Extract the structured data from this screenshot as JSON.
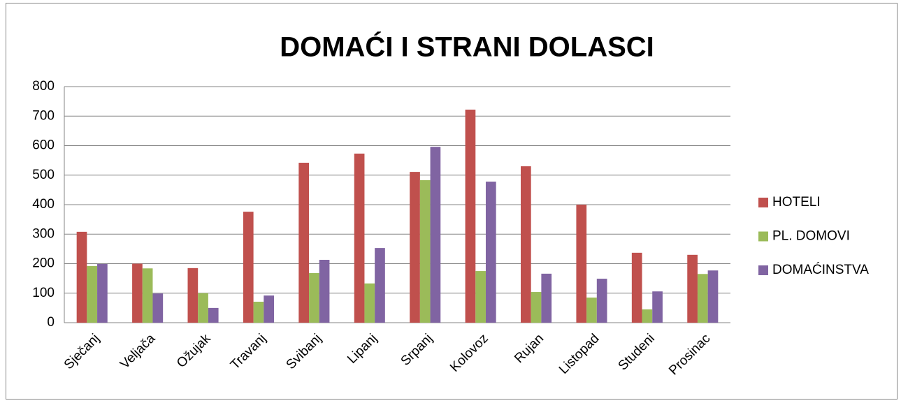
{
  "chart_data": {
    "type": "bar",
    "title": "DOMAĆI I STRANI DOLASCI",
    "categories": [
      "Sječanj",
      "Veljača",
      "Ožujak",
      "Travanj",
      "Svibanj",
      "Lipanj",
      "Srpanj",
      "Kolovoz",
      "Rujan",
      "Listopad",
      "Studeni",
      "Prosinac"
    ],
    "series": [
      {
        "name": "HOTELI",
        "color": "#c0504d",
        "values": [
          308,
          200,
          185,
          376,
          542,
          573,
          511,
          722,
          530,
          400,
          237,
          230
        ]
      },
      {
        "name": "PL. DOMOVI",
        "color": "#9bbb59",
        "values": [
          192,
          184,
          100,
          71,
          168,
          133,
          483,
          175,
          104,
          85,
          45,
          165
        ]
      },
      {
        "name": "DOMAĆINSTVA",
        "color": "#8064a2",
        "values": [
          199,
          99,
          50,
          92,
          213,
          253,
          596,
          478,
          166,
          149,
          106,
          177
        ]
      }
    ],
    "ylim": [
      0,
      800
    ],
    "yticks": [
      0,
      100,
      200,
      300,
      400,
      500,
      600,
      700,
      800
    ],
    "grid": true,
    "legend": "right"
  }
}
